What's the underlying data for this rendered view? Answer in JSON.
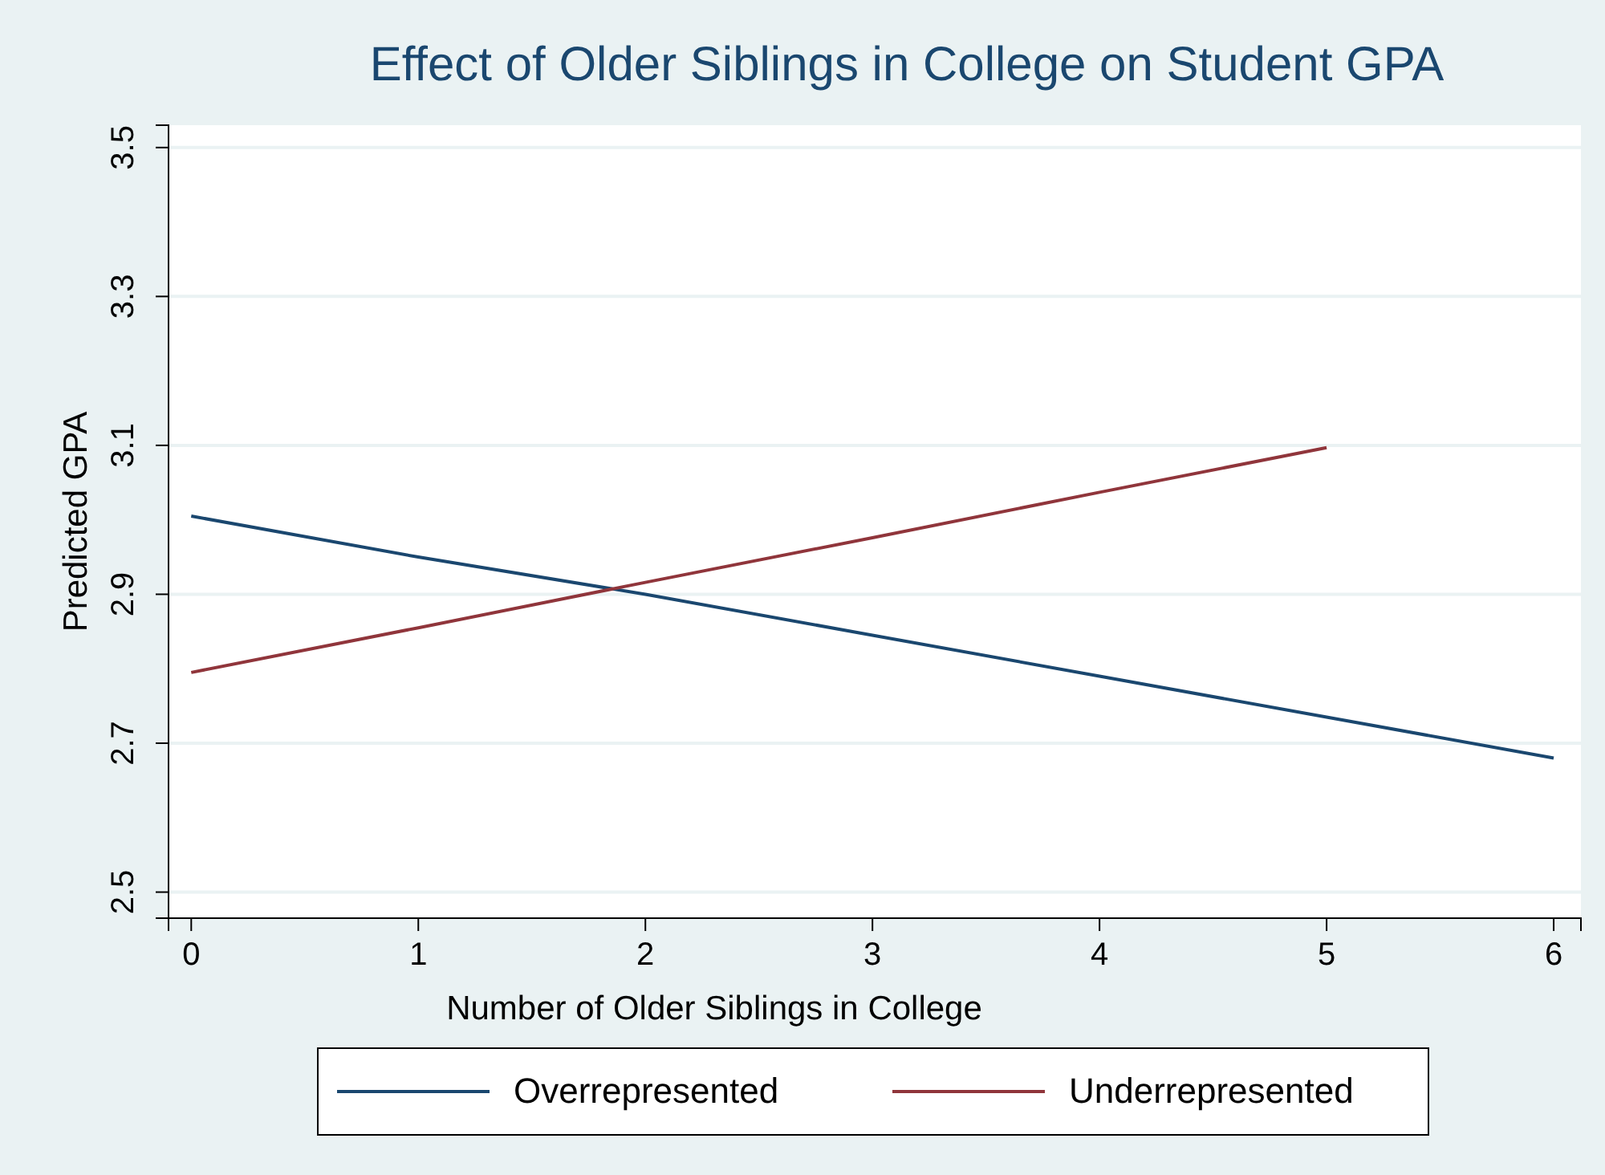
{
  "chart_data": {
    "type": "line",
    "title": "Effect of Older Siblings in College on Student GPA",
    "xlabel": "Number of Older Siblings in College",
    "ylabel": "Predicted GPA",
    "xlim": [
      -0.1,
      6.12
    ],
    "xticks": [
      0,
      1,
      2,
      3,
      4,
      5,
      6
    ],
    "ylim": [
      2.465,
      3.53
    ],
    "yticks": [
      2.5,
      2.7,
      2.9,
      3.1,
      3.3,
      3.5
    ],
    "grid": "y",
    "legend": "bottom",
    "line_style": "solid",
    "series": [
      {
        "name": "Overrepresented",
        "color": "#1a476f",
        "x": [
          0,
          1,
          2,
          3,
          4,
          5,
          6
        ],
        "values": [
          3.005,
          2.95,
          2.9,
          2.845,
          2.79,
          2.735,
          2.68
        ]
      },
      {
        "name": "Underrepresented",
        "color": "#90353b",
        "x": [
          0,
          1,
          2,
          3,
          4,
          5
        ],
        "values": [
          2.795,
          2.855,
          2.916,
          2.976,
          3.037,
          3.097
        ]
      }
    ]
  }
}
